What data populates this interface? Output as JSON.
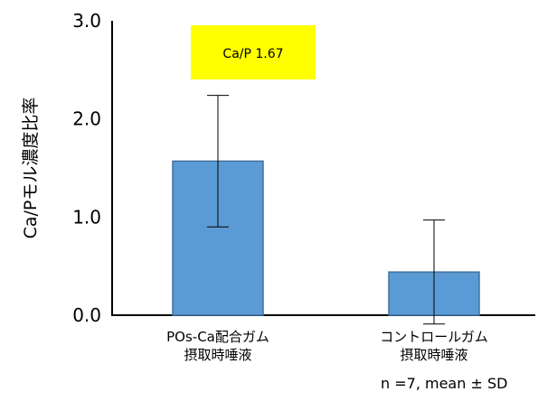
{
  "chart_data": {
    "type": "bar",
    "title": "",
    "ylabel": "Ca/Pモル濃度比率",
    "xlabel": "",
    "ylim": [
      0,
      3.0
    ],
    "yticks": [
      "0.0",
      "1.0",
      "2.0",
      "3.0"
    ],
    "categories": [
      [
        "POs-Ca配合ガム",
        "摂取時唾液"
      ],
      [
        "コントロールガム",
        "摂取時唾液"
      ]
    ],
    "series": [
      {
        "values": [
          1.57,
          0.44
        ],
        "error": [
          0.67,
          0.53
        ]
      }
    ],
    "bar_color": "#5b9bd5",
    "bar_edge": "#41719c",
    "annotation": {
      "text": "Ca/P 1.67",
      "background": "#ffff00"
    },
    "grid": false,
    "legend": "none"
  },
  "note": "n =7, mean ±  SD"
}
